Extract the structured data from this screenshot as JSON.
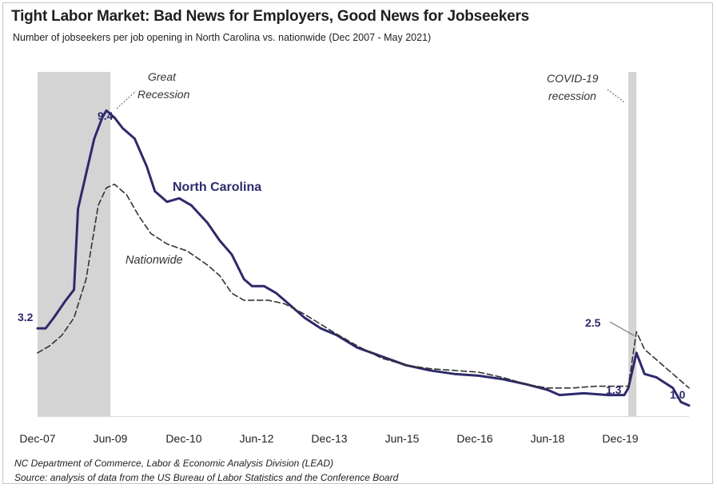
{
  "title": "Tight Labor Market: Bad News for Employers, Good News for Jobseekers",
  "subtitle": "Number  of jobseekers per job opening in North Carolina vs. nationwide (Dec 2007 - May 2021)",
  "source_lines": [
    "NC Department  of Commerce,  Labor & Economic Analysis Division (LEAD)",
    "Source:  analysis of data from the US Bureau of Labor Statistics and the Conference Board"
  ],
  "chart_data": {
    "type": "line",
    "title": "Tight Labor Market: Bad News for Employers, Good News for Jobseekers",
    "subtitle": "Number  of jobseekers per job opening in North Carolina vs. nationwide (Dec 2007 - May 2021)",
    "xlabel": "",
    "ylabel": "",
    "x_ticks": [
      "Dec-07",
      "Jun-09",
      "Dec-10",
      "Jun-12",
      "Dec-13",
      "Jun-15",
      "Dec-16",
      "Jun-18",
      "Dec-19"
    ],
    "x_range": [
      "2007-12",
      "2021-05"
    ],
    "ylim": [
      0.7,
      10.5
    ],
    "grid": false,
    "recessions": [
      {
        "label": "Great\nRecession",
        "start": "2007-12",
        "end": "2009-06",
        "color": "#d4d4d4"
      },
      {
        "label": "COVID-19\nrecession",
        "start": "2020-02",
        "end": "2020-04",
        "color": "#d4d4d4"
      }
    ],
    "annotations": [
      {
        "text": "3.2",
        "x": "2007-12",
        "y": 3.2
      },
      {
        "text": "9.4",
        "x": "2009-05",
        "y": 9.4
      },
      {
        "text": "2.5",
        "x": "2020-04",
        "y": 2.5
      },
      {
        "text": "1.3",
        "x": "2020-01",
        "y": 1.3
      },
      {
        "text": "1.0",
        "x": "2021-05",
        "y": 1.0
      }
    ],
    "series": [
      {
        "name": "North Carolina",
        "color": "#2e2a6b",
        "style": "solid",
        "points": [
          [
            "2007-12",
            3.2
          ],
          [
            "2008-02",
            3.2
          ],
          [
            "2008-04",
            3.5
          ],
          [
            "2008-07",
            4.0
          ],
          [
            "2008-09",
            4.3
          ],
          [
            "2008-10",
            6.6
          ],
          [
            "2008-12",
            7.6
          ],
          [
            "2009-02",
            8.6
          ],
          [
            "2009-04",
            9.2
          ],
          [
            "2009-05",
            9.4
          ],
          [
            "2009-07",
            9.2
          ],
          [
            "2009-09",
            8.9
          ],
          [
            "2009-12",
            8.6
          ],
          [
            "2010-03",
            7.8
          ],
          [
            "2010-05",
            7.1
          ],
          [
            "2010-08",
            6.8
          ],
          [
            "2010-11",
            6.9
          ],
          [
            "2011-02",
            6.7
          ],
          [
            "2011-06",
            6.2
          ],
          [
            "2011-09",
            5.7
          ],
          [
            "2011-12",
            5.3
          ],
          [
            "2012-03",
            4.6
          ],
          [
            "2012-05",
            4.4
          ],
          [
            "2012-08",
            4.4
          ],
          [
            "2012-11",
            4.2
          ],
          [
            "2013-02",
            3.9
          ],
          [
            "2013-06",
            3.5
          ],
          [
            "2013-10",
            3.2
          ],
          [
            "2014-02",
            3.0
          ],
          [
            "2014-07",
            2.65
          ],
          [
            "2015-01",
            2.4
          ],
          [
            "2015-07",
            2.15
          ],
          [
            "2016-01",
            2.0
          ],
          [
            "2016-07",
            1.9
          ],
          [
            "2017-01",
            1.85
          ],
          [
            "2017-07",
            1.75
          ],
          [
            "2018-01",
            1.6
          ],
          [
            "2018-06",
            1.45
          ],
          [
            "2018-09",
            1.3
          ],
          [
            "2019-03",
            1.35
          ],
          [
            "2019-09",
            1.3
          ],
          [
            "2020-01",
            1.3
          ],
          [
            "2020-02",
            1.5
          ],
          [
            "2020-04",
            2.5
          ],
          [
            "2020-06",
            1.9
          ],
          [
            "2020-09",
            1.8
          ],
          [
            "2021-01",
            1.5
          ],
          [
            "2021-03",
            1.1
          ],
          [
            "2021-05",
            1.0
          ]
        ]
      },
      {
        "name": "Nationwide",
        "color": "#333333",
        "style": "dashed",
        "points": [
          [
            "2007-12",
            2.5
          ],
          [
            "2008-03",
            2.7
          ],
          [
            "2008-06",
            3.0
          ],
          [
            "2008-09",
            3.5
          ],
          [
            "2008-12",
            4.6
          ],
          [
            "2009-03",
            6.7
          ],
          [
            "2009-05",
            7.2
          ],
          [
            "2009-07",
            7.3
          ],
          [
            "2009-10",
            7.0
          ],
          [
            "2010-01",
            6.4
          ],
          [
            "2010-04",
            5.9
          ],
          [
            "2010-08",
            5.6
          ],
          [
            "2011-01",
            5.4
          ],
          [
            "2011-06",
            5.0
          ],
          [
            "2011-09",
            4.7
          ],
          [
            "2011-12",
            4.2
          ],
          [
            "2012-03",
            4.0
          ],
          [
            "2012-09",
            4.0
          ],
          [
            "2013-01",
            3.9
          ],
          [
            "2013-06",
            3.6
          ],
          [
            "2014-01",
            3.1
          ],
          [
            "2014-07",
            2.7
          ],
          [
            "2015-01",
            2.35
          ],
          [
            "2015-07",
            2.15
          ],
          [
            "2016-01",
            2.05
          ],
          [
            "2016-07",
            2.0
          ],
          [
            "2017-01",
            1.95
          ],
          [
            "2017-07",
            1.8
          ],
          [
            "2018-01",
            1.6
          ],
          [
            "2018-06",
            1.5
          ],
          [
            "2018-12",
            1.5
          ],
          [
            "2019-06",
            1.55
          ],
          [
            "2019-12",
            1.55
          ],
          [
            "2020-02",
            1.55
          ],
          [
            "2020-04",
            3.1
          ],
          [
            "2020-06",
            2.6
          ],
          [
            "2020-10",
            2.2
          ],
          [
            "2021-02",
            1.8
          ],
          [
            "2021-05",
            1.5
          ]
        ]
      }
    ],
    "series_labels": [
      {
        "text": "North Carolina",
        "series": "North Carolina"
      },
      {
        "text": "Nationwide",
        "series": "Nationwide"
      }
    ]
  }
}
